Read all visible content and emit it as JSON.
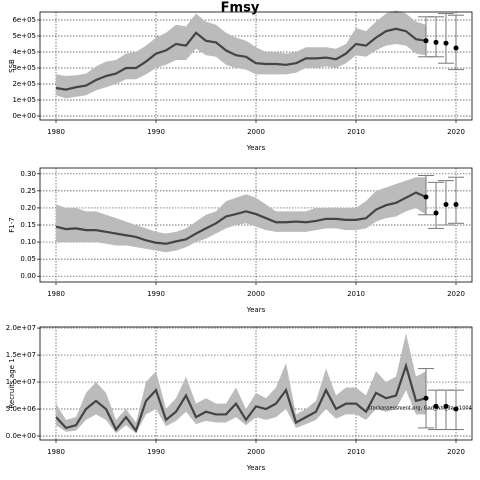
{
  "chart_data": [
    {
      "type": "line",
      "title": "Fmsy",
      "ylabel": "SSB",
      "xlabel": "Years",
      "xlim": [
        1978.4,
        2021.6
      ],
      "xticks": [
        1980,
        1990,
        2000,
        2010,
        2020
      ],
      "ylim": [
        -25000,
        650000
      ],
      "yticks": [
        {
          "value": 0,
          "label": "0e+00"
        },
        {
          "value": 100000,
          "label": "1e+05"
        },
        {
          "value": 200000,
          "label": "2e+05"
        },
        {
          "value": 300000,
          "label": "3e+05"
        },
        {
          "value": 400000,
          "label": "4e+05"
        },
        {
          "value": 500000,
          "label": "5e+05"
        },
        {
          "value": 600000,
          "label": "6e+05"
        }
      ],
      "grid": true,
      "color": "#444444",
      "band_color": "#bbbbbb",
      "x": [
        1980,
        1981,
        1982,
        1983,
        1984,
        1985,
        1986,
        1987,
        1988,
        1989,
        1990,
        1991,
        1992,
        1993,
        1994,
        1995,
        1996,
        1997,
        1998,
        1999,
        2000,
        2001,
        2002,
        2003,
        2004,
        2005,
        2006,
        2007,
        2008,
        2009,
        2010,
        2011,
        2012,
        2013,
        2014,
        2015,
        2016,
        2017
      ],
      "values": [
        175000,
        165000,
        180000,
        190000,
        225000,
        250000,
        265000,
        300000,
        300000,
        340000,
        390000,
        410000,
        450000,
        440000,
        520000,
        470000,
        460000,
        410000,
        380000,
        370000,
        330000,
        325000,
        325000,
        320000,
        330000,
        360000,
        360000,
        365000,
        355000,
        390000,
        450000,
        440000,
        490000,
        530000,
        545000,
        530000,
        480000,
        470000
      ],
      "upper": [
        260000,
        250000,
        255000,
        265000,
        310000,
        340000,
        350000,
        390000,
        400000,
        440000,
        490000,
        520000,
        570000,
        560000,
        640000,
        590000,
        570000,
        520000,
        490000,
        470000,
        430000,
        400000,
        400000,
        390000,
        400000,
        430000,
        430000,
        430000,
        420000,
        450000,
        550000,
        530000,
        590000,
        640000,
        660000,
        640000,
        590000,
        570000
      ],
      "lower": [
        130000,
        110000,
        120000,
        130000,
        160000,
        180000,
        200000,
        230000,
        230000,
        260000,
        300000,
        320000,
        350000,
        350000,
        420000,
        380000,
        370000,
        320000,
        300000,
        290000,
        260000,
        260000,
        260000,
        260000,
        270000,
        300000,
        300000,
        310000,
        300000,
        330000,
        380000,
        370000,
        410000,
        440000,
        450000,
        440000,
        390000,
        380000
      ],
      "forecast": {
        "x": [
          2017,
          2018,
          2019,
          2020
        ],
        "values": [
          470000,
          460000,
          455000,
          425000
        ],
        "lower": [
          370000,
          370000,
          330000,
          290000
        ],
        "upper": [
          620000,
          620000,
          640000,
          630000
        ]
      }
    },
    {
      "type": "line",
      "ylabel": "F1-7",
      "xlabel": "Years",
      "xlim": [
        1978.4,
        2021.6
      ],
      "xticks": [
        1980,
        1990,
        2000,
        2010,
        2020
      ],
      "ylim": [
        -0.017,
        0.317
      ],
      "yticks": [
        {
          "value": 0,
          "label": "0.00"
        },
        0.05,
        {
          "value": 0.1,
          "label": "0.10"
        },
        0.15,
        {
          "value": 0.2,
          "label": "0.20"
        },
        0.25,
        {
          "value": 0.3,
          "label": "0.30"
        }
      ],
      "grid": true,
      "color": "#444444",
      "band_color": "#bbbbbb",
      "x": [
        1980,
        1981,
        1982,
        1983,
        1984,
        1985,
        1986,
        1987,
        1988,
        1989,
        1990,
        1991,
        1992,
        1993,
        1994,
        1995,
        1996,
        1997,
        1998,
        1999,
        2000,
        2001,
        2002,
        2003,
        2004,
        2005,
        2006,
        2007,
        2008,
        2009,
        2010,
        2011,
        2012,
        2013,
        2014,
        2015,
        2016,
        2017
      ],
      "values": [
        0.145,
        0.138,
        0.14,
        0.135,
        0.135,
        0.13,
        0.125,
        0.12,
        0.115,
        0.105,
        0.098,
        0.095,
        0.102,
        0.108,
        0.125,
        0.14,
        0.155,
        0.175,
        0.182,
        0.19,
        0.182,
        0.17,
        0.158,
        0.158,
        0.16,
        0.158,
        0.162,
        0.168,
        0.168,
        0.165,
        0.165,
        0.17,
        0.195,
        0.208,
        0.215,
        0.23,
        0.245,
        0.232
      ],
      "upper": [
        0.21,
        0.2,
        0.2,
        0.19,
        0.19,
        0.18,
        0.17,
        0.16,
        0.15,
        0.14,
        0.13,
        0.125,
        0.13,
        0.14,
        0.16,
        0.18,
        0.19,
        0.22,
        0.23,
        0.24,
        0.23,
        0.21,
        0.19,
        0.19,
        0.19,
        0.19,
        0.2,
        0.2,
        0.2,
        0.2,
        0.2,
        0.22,
        0.25,
        0.26,
        0.27,
        0.28,
        0.29,
        0.29
      ],
      "lower": [
        0.1,
        0.1,
        0.1,
        0.1,
        0.1,
        0.095,
        0.09,
        0.09,
        0.085,
        0.08,
        0.075,
        0.07,
        0.075,
        0.085,
        0.1,
        0.11,
        0.125,
        0.14,
        0.15,
        0.155,
        0.145,
        0.135,
        0.13,
        0.13,
        0.13,
        0.13,
        0.135,
        0.14,
        0.14,
        0.135,
        0.135,
        0.14,
        0.16,
        0.17,
        0.175,
        0.19,
        0.2,
        0.18
      ],
      "forecast": {
        "x": [
          2017,
          2018,
          2019,
          2020
        ],
        "values": [
          0.232,
          0.185,
          0.21,
          0.21
        ],
        "lower": [
          0.18,
          0.14,
          0.15,
          0.155
        ],
        "upper": [
          0.295,
          0.275,
          0.28,
          0.29
        ]
      }
    },
    {
      "type": "line",
      "ylabel": "Recruits age 1",
      "xlabel": "Years",
      "annotation": "stockassessment.org, Gad_whi_3a_c1004",
      "xlim": [
        1978.4,
        2021.6
      ],
      "xticks": [
        1980,
        1990,
        2000,
        2010,
        2020
      ],
      "ylim": [
        -740000,
        20200000
      ],
      "yticks": [
        {
          "value": 0,
          "label": "0.0e+00"
        },
        {
          "value": 5000000,
          "label": "5.0e+06"
        },
        {
          "value": 10000000,
          "label": "1.0e+07"
        },
        {
          "value": 15000000,
          "label": "1.5e+07"
        },
        {
          "value": 20000000,
          "label": "2.0e+07"
        }
      ],
      "grid": true,
      "color": "#444444",
      "band_color": "#bbbbbb",
      "x": [
        1980,
        1981,
        1982,
        1983,
        1984,
        1985,
        1986,
        1987,
        1988,
        1989,
        1990,
        1991,
        1992,
        1993,
        1994,
        1995,
        1996,
        1997,
        1998,
        1999,
        2000,
        2001,
        2002,
        2003,
        2004,
        2005,
        2006,
        2007,
        2008,
        2009,
        2010,
        2011,
        2012,
        2013,
        2014,
        2015,
        2016,
        2017
      ],
      "values": [
        3500000,
        1500000,
        2000000,
        5000000,
        6500000,
        5000000,
        1200000,
        3500000,
        1000000,
        6500000,
        8500000,
        3000000,
        4500000,
        7500000,
        3500000,
        4500000,
        4000000,
        4000000,
        6000000,
        3000000,
        5500000,
        5000000,
        6000000,
        8500000,
        2500000,
        3500000,
        4500000,
        8500000,
        5000000,
        6000000,
        6000000,
        4500000,
        8000000,
        7000000,
        7500000,
        13000000,
        6500000,
        7000000
      ],
      "upper": [
        6000000,
        3000000,
        3500000,
        8000000,
        10000000,
        8000000,
        3000000,
        5000000,
        2500000,
        10000000,
        12000000,
        5000000,
        7000000,
        11000000,
        6000000,
        7000000,
        6000000,
        6000000,
        9000000,
        5000000,
        8000000,
        7000000,
        9000000,
        13500000,
        4000000,
        5000000,
        6500000,
        12500000,
        7500000,
        9000000,
        9000000,
        7500000,
        12000000,
        10000000,
        11000000,
        19000000,
        11000000,
        12000000
      ],
      "lower": [
        2000000,
        800000,
        1000000,
        3000000,
        4000000,
        3000000,
        500000,
        2000000,
        500000,
        4000000,
        5000000,
        1800000,
        2800000,
        4500000,
        2200000,
        2800000,
        2500000,
        2500000,
        3500000,
        2000000,
        3500000,
        3000000,
        3500000,
        5000000,
        1500000,
        2200000,
        3000000,
        5000000,
        3200000,
        4000000,
        4000000,
        3000000,
        5000000,
        4500000,
        5000000,
        8500000,
        4000000,
        4000000
      ],
      "forecast": {
        "x": [
          2017,
          2018,
          2019,
          2020
        ],
        "values": [
          7000000,
          5500000,
          5500000,
          5000000
        ],
        "lower": [
          1500000,
          1200000,
          1200000,
          1200000
        ],
        "upper": [
          12500000,
          8500000,
          8500000,
          8500000
        ]
      }
    }
  ]
}
